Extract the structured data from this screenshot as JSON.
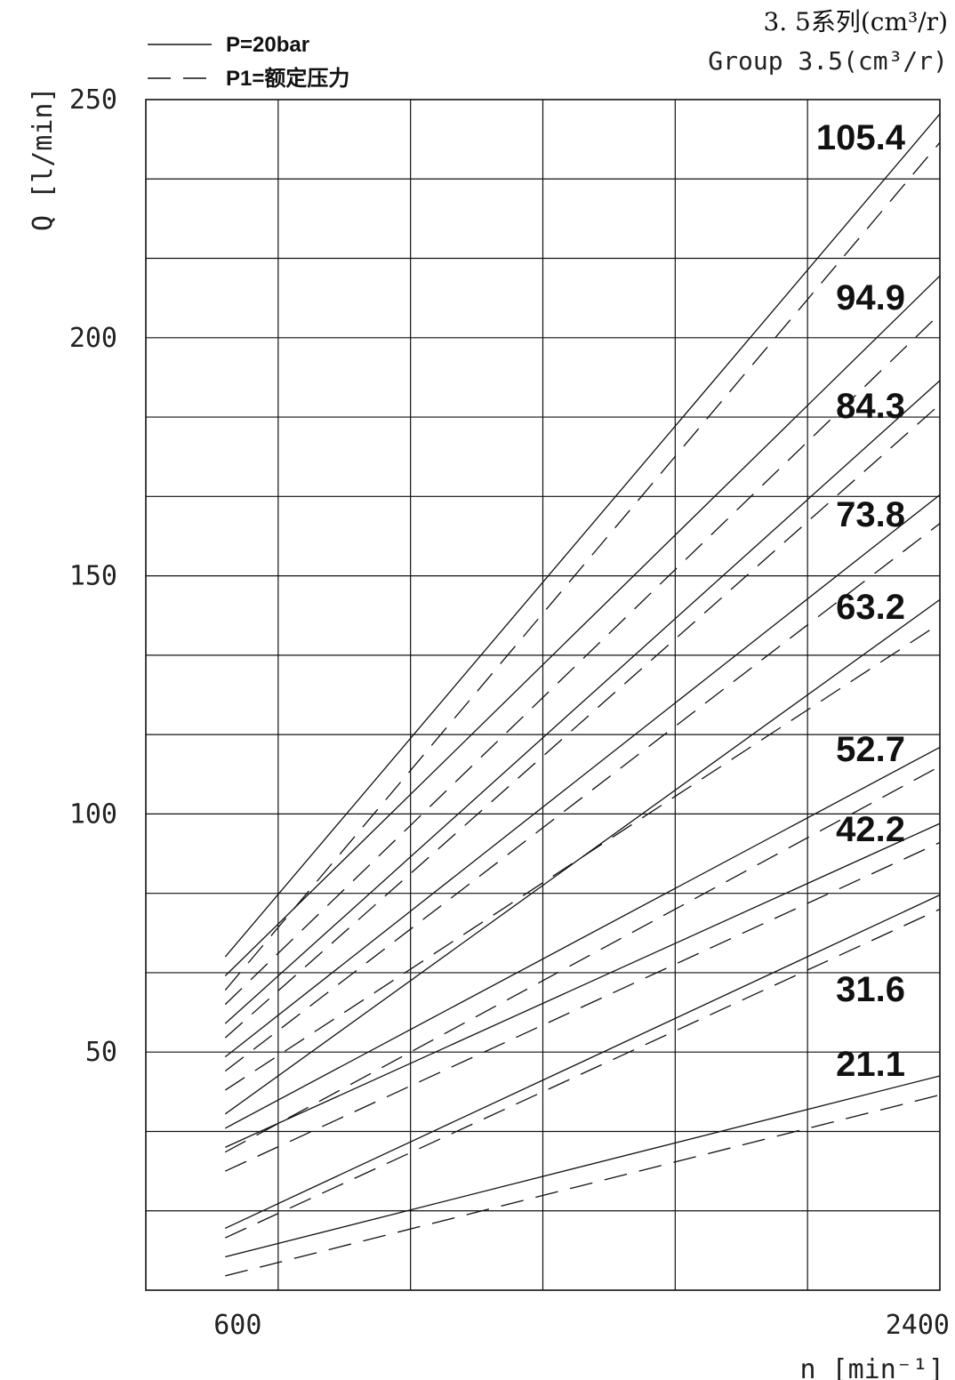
{
  "header": {
    "title_cn": "3. 5系列(cm³/r)",
    "title_en": "Group 3.5(cm³/r)"
  },
  "legend": {
    "solid_label": "P=20bar",
    "dashed_label": "P1=额定压力"
  },
  "chart_data": {
    "type": "line",
    "xlabel": "n [min⁻¹]",
    "ylabel": "Q [l/min]",
    "xlim": [
      400,
      2400
    ],
    "ylim": [
      0,
      250
    ],
    "x_ticks": [
      600,
      2400
    ],
    "y_ticks": [
      50,
      100,
      150,
      200,
      250
    ],
    "grid": true,
    "legend_position": "top-left",
    "series_styles": [
      {
        "style": "solid",
        "pressure": "P=20bar"
      },
      {
        "style": "dashed",
        "pressure": "P1=额定压力"
      }
    ],
    "series": [
      {
        "name": "105.4",
        "solid": [
          [
            600,
            70
          ],
          [
            2400,
            247
          ]
        ],
        "dashed": [
          [
            600,
            63
          ],
          [
            2400,
            241
          ]
        ]
      },
      {
        "name": "94.9",
        "solid": [
          [
            600,
            66
          ],
          [
            2400,
            213
          ]
        ],
        "dashed": [
          [
            600,
            60
          ],
          [
            2400,
            205
          ]
        ]
      },
      {
        "name": "84.3",
        "solid": [
          [
            600,
            56
          ],
          [
            2400,
            191
          ]
        ],
        "dashed": [
          [
            600,
            53
          ],
          [
            2400,
            186
          ]
        ]
      },
      {
        "name": "73.8",
        "solid": [
          [
            600,
            49
          ],
          [
            2400,
            167
          ]
        ],
        "dashed": [
          [
            600,
            46
          ],
          [
            2400,
            161
          ]
        ]
      },
      {
        "name": "63.2",
        "solid": [
          [
            600,
            37
          ],
          [
            2400,
            145
          ]
        ],
        "dashed": [
          [
            600,
            42
          ],
          [
            2400,
            140
          ]
        ]
      },
      {
        "name": "52.7",
        "solid": [
          [
            600,
            34
          ],
          [
            2400,
            114
          ]
        ],
        "dashed": [
          [
            600,
            29
          ],
          [
            2400,
            110
          ]
        ]
      },
      {
        "name": "42.2",
        "solid": [
          [
            600,
            30
          ],
          [
            2400,
            98
          ]
        ],
        "dashed": [
          [
            600,
            25
          ],
          [
            2400,
            94
          ]
        ]
      },
      {
        "name": "31.6",
        "solid": [
          [
            600,
            13
          ],
          [
            2400,
            83
          ]
        ],
        "dashed": [
          [
            600,
            11
          ],
          [
            2400,
            80
          ]
        ]
      },
      {
        "name": "21.1",
        "solid": [
          [
            600,
            7
          ],
          [
            2400,
            45
          ]
        ],
        "dashed": [
          [
            600,
            3
          ],
          [
            2400,
            41
          ]
        ]
      }
    ]
  }
}
